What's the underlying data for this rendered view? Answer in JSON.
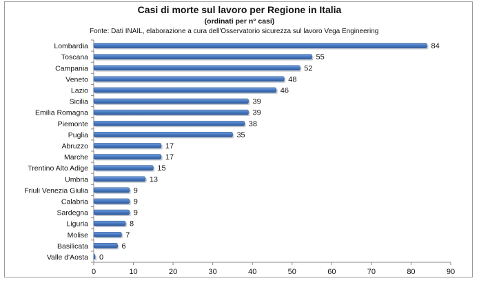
{
  "chart_data": {
    "type": "bar",
    "orientation": "horizontal",
    "title": "Casi di morte sul lavoro per Regione in Italia",
    "subtitle": "(ordinati per n° casi)",
    "source": "Fonte: Dati INAIL, elaborazione a cura dell'Osservatorio sicurezza sul lavoro Vega Engineering",
    "categories": [
      "Lombardia",
      "Toscana",
      "Campania",
      "Veneto",
      "Lazio",
      "Sicilia",
      "Emilia Romagna",
      "Piemonte",
      "Puglia",
      "Abruzzo",
      "Marche",
      "Trentino Alto Adige",
      "Umbria",
      "Friuli Venezia Giulia",
      "Calabria",
      "Sardegna",
      "Liguria",
      "Molise",
      "Basilicata",
      "Valle d'Aosta"
    ],
    "values": [
      84,
      55,
      52,
      48,
      46,
      39,
      39,
      38,
      35,
      17,
      17,
      15,
      13,
      9,
      9,
      9,
      8,
      7,
      6,
      0
    ],
    "xlim": [
      0,
      90
    ],
    "xticks": [
      0,
      10,
      20,
      30,
      40,
      50,
      60,
      70,
      80,
      90
    ],
    "grid": false,
    "legend": "none",
    "bar_color": "#4a7bc4"
  }
}
